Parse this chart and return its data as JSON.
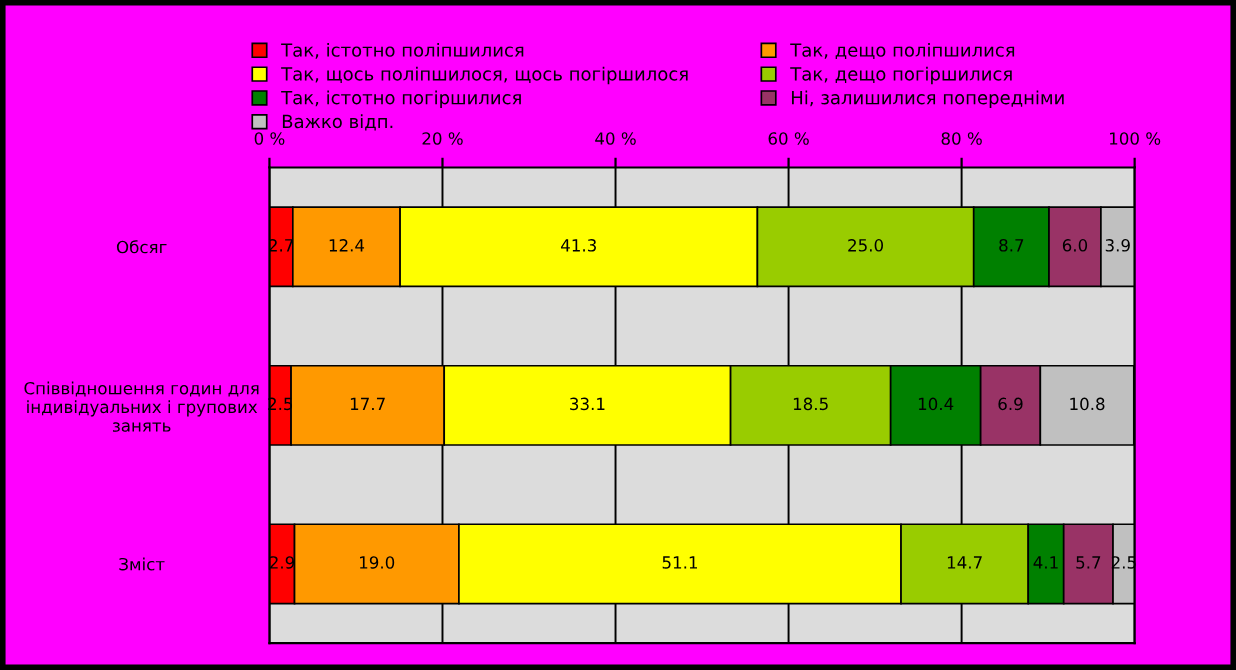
{
  "chart_data": {
    "type": "bar",
    "orientation": "horizontal",
    "stacked": true,
    "grid": "x",
    "legend": "top",
    "categories": [
      "Обсяг",
      "Співвідношення годин для\nіндивідуальних і групових\nзанять",
      "Зміст"
    ],
    "xlim": [
      0,
      100
    ],
    "xticks": [
      {
        "value": 0,
        "label": "0 %"
      },
      {
        "value": 20,
        "label": "20 %"
      },
      {
        "value": 40,
        "label": "40 %"
      },
      {
        "value": 60,
        "label": "60 %"
      },
      {
        "value": 80,
        "label": "80 %"
      },
      {
        "value": 100,
        "label": "100 %"
      }
    ],
    "series": [
      {
        "name": "Так, істотно поліпшилися",
        "color": "#ff0000",
        "values": [
          2.7,
          2.5,
          2.9
        ],
        "value_labels": [
          "2.7",
          "2.5",
          "2.9"
        ]
      },
      {
        "name": "Так, дещо поліпшилися",
        "color": "#ff9900",
        "values": [
          12.4,
          17.7,
          19.0
        ],
        "value_labels": [
          "12.4",
          "17.7",
          "19.0"
        ]
      },
      {
        "name": "Так, щось поліпшилося, щось погіршилося",
        "color": "#ffff00",
        "values": [
          41.3,
          33.1,
          51.1
        ],
        "value_labels": [
          "41.3",
          "33.1",
          "51.1"
        ]
      },
      {
        "name": "Так, дещо погіршилися",
        "color": "#99cc00",
        "values": [
          25.0,
          18.5,
          14.7
        ],
        "value_labels": [
          "25.0",
          "18.5",
          "14.7"
        ]
      },
      {
        "name": "Так, істотно погіршилися",
        "color": "#008000",
        "values": [
          8.7,
          10.4,
          4.1
        ],
        "value_labels": [
          "8.7",
          "10.4",
          "4.1"
        ]
      },
      {
        "name": "Ні, залишилися попередніми",
        "color": "#993366",
        "values": [
          6.0,
          6.9,
          5.7
        ],
        "value_labels": [
          "6.0",
          "6.9",
          "5.7"
        ]
      },
      {
        "name": "Важко відп.",
        "color": "#c0c0c0",
        "values": [
          3.9,
          10.8,
          2.5
        ],
        "value_labels": [
          "3.9",
          "10.8",
          "2.5"
        ]
      }
    ]
  }
}
